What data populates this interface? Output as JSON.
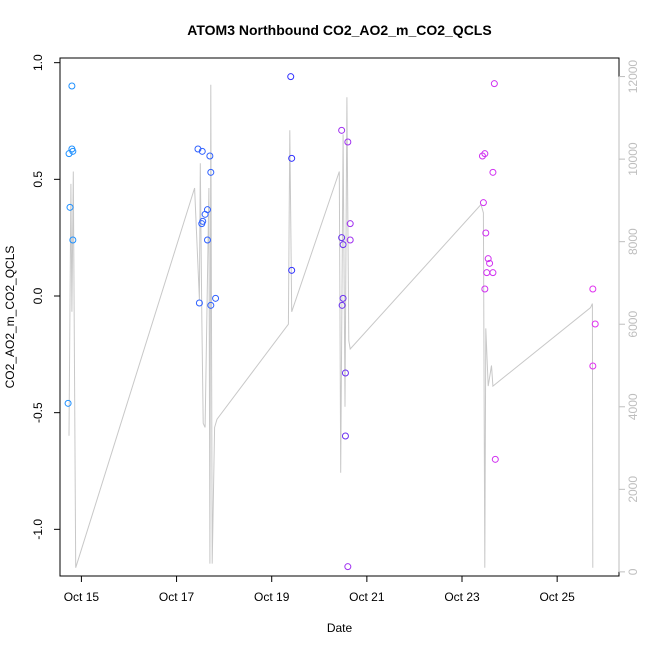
{
  "chart_data": {
    "type": "scatter",
    "title": "ATOM3 Northbound CO2_AO2_m_CO2_QCLS",
    "xlabel": "Date",
    "ylabel": "CO2_AO2_m_CO2_QCLS",
    "xlim": [
      14.55,
      26.3
    ],
    "ylim": [
      -1.2,
      1.02
    ],
    "y2lim": [
      -100,
      12450
    ],
    "x_ticks": [
      {
        "value": 15,
        "label": "Oct 15"
      },
      {
        "value": 17,
        "label": "Oct 17"
      },
      {
        "value": 19,
        "label": "Oct 19"
      },
      {
        "value": 21,
        "label": "Oct 21"
      },
      {
        "value": 23,
        "label": "Oct 23"
      },
      {
        "value": 25,
        "label": "Oct 25"
      }
    ],
    "y_ticks": [
      {
        "value": 1.0,
        "label": "1.0"
      },
      {
        "value": 0.5,
        "label": "0.5"
      },
      {
        "value": 0.0,
        "label": "0.0"
      },
      {
        "value": -0.5,
        "label": "-0.5"
      },
      {
        "value": -1.0,
        "label": "-1.0"
      }
    ],
    "y2_ticks": [
      {
        "value": 0,
        "label": "0"
      },
      {
        "value": 2000,
        "label": "2000"
      },
      {
        "value": 4000,
        "label": "4000"
      },
      {
        "value": 6000,
        "label": "6000"
      },
      {
        "value": 8000,
        "label": "8000"
      },
      {
        "value": 10000,
        "label": "10000"
      },
      {
        "value": 12000,
        "label": "12000"
      }
    ],
    "points": [
      {
        "x": 14.72,
        "y": -0.46,
        "color": "#1e90ff"
      },
      {
        "x": 14.76,
        "y": 0.38,
        "color": "#1e90ff"
      },
      {
        "x": 14.74,
        "y": 0.61,
        "color": "#1e90ff"
      },
      {
        "x": 14.8,
        "y": 0.63,
        "color": "#1e90ff"
      },
      {
        "x": 14.8,
        "y": 0.9,
        "color": "#1e90ff"
      },
      {
        "x": 14.82,
        "y": 0.62,
        "color": "#1e90ff"
      },
      {
        "x": 14.82,
        "y": 0.24,
        "color": "#1e90ff"
      },
      {
        "x": 17.45,
        "y": 0.63,
        "color": "#2e60ff"
      },
      {
        "x": 17.54,
        "y": 0.62,
        "color": "#2e60ff"
      },
      {
        "x": 17.7,
        "y": 0.6,
        "color": "#2e60ff"
      },
      {
        "x": 17.72,
        "y": 0.53,
        "color": "#2e60ff"
      },
      {
        "x": 17.65,
        "y": 0.37,
        "color": "#2e60ff"
      },
      {
        "x": 17.6,
        "y": 0.35,
        "color": "#2e60ff"
      },
      {
        "x": 17.55,
        "y": 0.32,
        "color": "#2e60ff"
      },
      {
        "x": 17.53,
        "y": 0.31,
        "color": "#2e60ff"
      },
      {
        "x": 17.65,
        "y": 0.24,
        "color": "#2e60ff"
      },
      {
        "x": 17.48,
        "y": -0.03,
        "color": "#2e60ff"
      },
      {
        "x": 17.82,
        "y": -0.01,
        "color": "#2e60ff"
      },
      {
        "x": 17.72,
        "y": -0.04,
        "color": "#2e60ff"
      },
      {
        "x": 19.4,
        "y": 0.94,
        "color": "#3030ff"
      },
      {
        "x": 19.42,
        "y": 0.59,
        "color": "#3030ff"
      },
      {
        "x": 19.42,
        "y": 0.11,
        "color": "#3030ff"
      },
      {
        "x": 20.47,
        "y": 0.71,
        "color": "#a030f0"
      },
      {
        "x": 20.47,
        "y": 0.25,
        "color": "#6a30f0"
      },
      {
        "x": 20.5,
        "y": 0.22,
        "color": "#6a30f0"
      },
      {
        "x": 20.5,
        "y": -0.01,
        "color": "#6a30f0"
      },
      {
        "x": 20.48,
        "y": -0.04,
        "color": "#6a30f0"
      },
      {
        "x": 20.55,
        "y": -0.33,
        "color": "#6a30f0"
      },
      {
        "x": 20.55,
        "y": -0.6,
        "color": "#6a30f0"
      },
      {
        "x": 20.6,
        "y": -1.16,
        "color": "#a030f0"
      },
      {
        "x": 20.6,
        "y": 0.66,
        "color": "#a030f0"
      },
      {
        "x": 20.65,
        "y": 0.31,
        "color": "#a030f0"
      },
      {
        "x": 20.65,
        "y": 0.24,
        "color": "#a030f0"
      },
      {
        "x": 23.43,
        "y": 0.6,
        "color": "#d030f0"
      },
      {
        "x": 23.48,
        "y": 0.61,
        "color": "#d030f0"
      },
      {
        "x": 23.45,
        "y": 0.4,
        "color": "#d030f0"
      },
      {
        "x": 23.5,
        "y": 0.27,
        "color": "#d030f0"
      },
      {
        "x": 23.55,
        "y": 0.16,
        "color": "#d030f0"
      },
      {
        "x": 23.58,
        "y": 0.14,
        "color": "#d030f0"
      },
      {
        "x": 23.52,
        "y": 0.1,
        "color": "#d030f0"
      },
      {
        "x": 23.65,
        "y": 0.1,
        "color": "#d030f0"
      },
      {
        "x": 23.48,
        "y": 0.03,
        "color": "#d030f0"
      },
      {
        "x": 23.65,
        "y": 0.53,
        "color": "#d030f0"
      },
      {
        "x": 23.68,
        "y": 0.91,
        "color": "#d030f0"
      },
      {
        "x": 23.7,
        "y": -0.7,
        "color": "#d030f0"
      },
      {
        "x": 25.75,
        "y": 0.03,
        "color": "#e030f0"
      },
      {
        "x": 25.8,
        "y": -0.12,
        "color": "#e030f0"
      },
      {
        "x": 25.75,
        "y": -0.3,
        "color": "#e030f0"
      }
    ],
    "altitude_line": {
      "color": "#c8c8c8",
      "points": [
        [
          14.74,
          3300
        ],
        [
          14.78,
          9400
        ],
        [
          14.8,
          6300
        ],
        [
          14.83,
          9700
        ],
        [
          14.88,
          100
        ],
        [
          17.38,
          9300
        ],
        [
          17.48,
          6600
        ],
        [
          17.5,
          9900
        ],
        [
          17.53,
          6200
        ],
        [
          17.56,
          3600
        ],
        [
          17.6,
          3500
        ],
        [
          17.68,
          9300
        ],
        [
          17.7,
          200
        ],
        [
          17.72,
          11800
        ],
        [
          17.75,
          200
        ],
        [
          17.8,
          3500
        ],
        [
          17.85,
          3700
        ],
        [
          19.35,
          6000
        ],
        [
          19.38,
          10700
        ],
        [
          19.42,
          6300
        ],
        [
          20.42,
          9700
        ],
        [
          20.45,
          2400
        ],
        [
          20.5,
          10600
        ],
        [
          20.54,
          4000
        ],
        [
          20.58,
          11500
        ],
        [
          20.62,
          5600
        ],
        [
          20.65,
          5400
        ],
        [
          23.4,
          8900
        ],
        [
          23.45,
          8700
        ],
        [
          23.48,
          100
        ],
        [
          23.5,
          5900
        ],
        [
          23.55,
          4500
        ],
        [
          23.62,
          5000
        ],
        [
          23.65,
          4500
        ],
        [
          25.7,
          6400
        ],
        [
          25.74,
          6500
        ],
        [
          25.75,
          100
        ]
      ]
    }
  }
}
